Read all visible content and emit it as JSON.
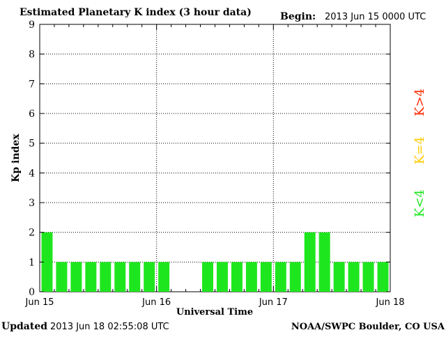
{
  "header": {
    "title": "Estimated Planetary K index (3 hour data)",
    "begin_label": "Begin:",
    "begin_value": "2013 Jun 15 0000 UTC"
  },
  "footer": {
    "updated_label": "Updated",
    "updated_value": "2013 Jun 18 02:55:08 UTC",
    "source": "NOAA/SWPC Boulder, CO USA"
  },
  "legend": {
    "high": "K>4",
    "equal": "K=4",
    "low": "K<4"
  },
  "colors": {
    "low": "#1ee61e",
    "equal": "#ffcc00",
    "high": "#ff2a00"
  },
  "chart_data": {
    "type": "bar",
    "title": "Estimated Planetary K index (3 hour data)",
    "xlabel": "Universal Time",
    "ylabel": "Kp index",
    "ylim": [
      0,
      9
    ],
    "yticks": [
      0,
      1,
      2,
      3,
      4,
      5,
      6,
      7,
      8,
      9
    ],
    "x_tick_labels": [
      "Jun 15",
      "Jun 16",
      "Jun 17",
      "Jun 18"
    ],
    "grid": true,
    "values": [
      2,
      1,
      1,
      1,
      1,
      1,
      1,
      1,
      1,
      null,
      null,
      1,
      1,
      1,
      1,
      1,
      1,
      1,
      2,
      2,
      1,
      1,
      1,
      1,
      1
    ]
  }
}
